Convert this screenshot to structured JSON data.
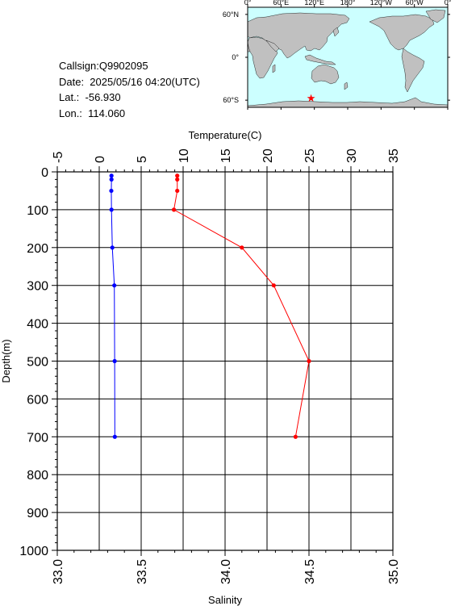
{
  "info": {
    "callsign": "Callsign:Q9902095",
    "date": "Date:  2025/05/16 04:20(UTC)",
    "lat": "Lat.:  -56.930",
    "lon": "Lon.:  114.060"
  },
  "map": {
    "top_labels": [
      "0°",
      "60°E",
      "120°E",
      "180°",
      "120°W",
      "60°W",
      "0°"
    ],
    "lat_labels": [
      "60°N",
      "0°",
      "60°S"
    ],
    "ocean_color": "#ccffff",
    "land_color": "#c0c0c0",
    "marker": {
      "lon": 114.06,
      "lat": -56.93,
      "color": "#ff0000"
    }
  },
  "chart_data": {
    "type": "line",
    "temperature_axis": {
      "label": "Temperature(C)",
      "range": [
        -5,
        35
      ],
      "ticks": [
        "-5",
        "0",
        "5",
        "10",
        "15",
        "20",
        "25",
        "30",
        "35"
      ]
    },
    "salinity_axis": {
      "label": "Salinity",
      "range": [
        33.0,
        35.0
      ],
      "ticks": [
        "33.0",
        "33.5",
        "34.0",
        "34.5",
        "35.0"
      ]
    },
    "depth_axis": {
      "label": "Depth(m)",
      "range": [
        0,
        1000
      ],
      "ticks": [
        "0",
        "100",
        "200",
        "300",
        "400",
        "500",
        "600",
        "700",
        "800",
        "900",
        "1000"
      ]
    },
    "series": [
      {
        "variable": "temperature",
        "color": "#ff0000",
        "depth": [
          10,
          20,
          50,
          100,
          200,
          300,
          500,
          700
        ],
        "values": [
          9.3,
          9.3,
          9.3,
          8.9,
          17.0,
          20.8,
          25.0,
          23.4
        ]
      },
      {
        "variable": "salinity",
        "color": "#0000ff",
        "depth": [
          10,
          20,
          50,
          100,
          200,
          300,
          500,
          700
        ],
        "values": [
          33.323,
          33.323,
          33.322,
          33.323,
          33.328,
          33.34,
          33.342,
          33.343
        ]
      }
    ]
  }
}
